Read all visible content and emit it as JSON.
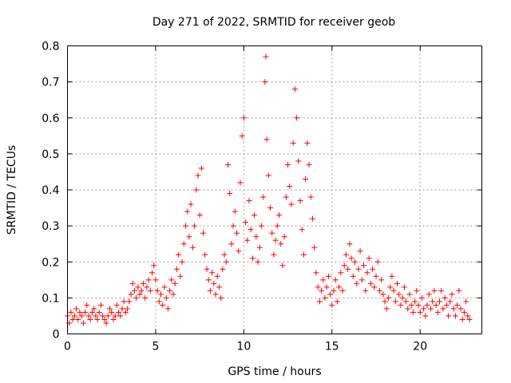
{
  "chart_data": {
    "type": "scatter",
    "title": "Day 271 of 2022, SRMTID for receiver geob",
    "xlabel": "GPS time / hours",
    "ylabel": "SRMTID / TECUs",
    "xlim": [
      0,
      23.5
    ],
    "ylim": [
      0,
      0.8
    ],
    "xticks": [
      0,
      5,
      10,
      15,
      20
    ],
    "yticks": [
      0,
      0.1,
      0.2,
      0.3,
      0.4,
      0.5,
      0.6,
      0.7,
      0.8
    ],
    "grid": true,
    "marker": "+",
    "series": [
      {
        "name": "SRMTID",
        "color": "#ff0000",
        "points": [
          [
            0.0,
            0.05
          ],
          [
            0.1,
            0.03
          ],
          [
            0.2,
            0.06
          ],
          [
            0.3,
            0.04
          ],
          [
            0.4,
            0.05
          ],
          [
            0.5,
            0.07
          ],
          [
            0.6,
            0.04
          ],
          [
            0.7,
            0.06
          ],
          [
            0.8,
            0.05
          ],
          [
            0.9,
            0.03
          ],
          [
            1.0,
            0.06
          ],
          [
            1.1,
            0.08
          ],
          [
            1.2,
            0.05
          ],
          [
            1.3,
            0.04
          ],
          [
            1.4,
            0.06
          ],
          [
            1.5,
            0.07
          ],
          [
            1.6,
            0.05
          ],
          [
            1.7,
            0.04
          ],
          [
            1.8,
            0.06
          ],
          [
            1.9,
            0.08
          ],
          [
            2.0,
            0.05
          ],
          [
            2.1,
            0.04
          ],
          [
            2.2,
            0.03
          ],
          [
            2.3,
            0.05
          ],
          [
            2.4,
            0.07
          ],
          [
            2.5,
            0.06
          ],
          [
            2.6,
            0.04
          ],
          [
            2.7,
            0.05
          ],
          [
            2.8,
            0.08
          ],
          [
            2.9,
            0.06
          ],
          [
            3.0,
            0.05
          ],
          [
            3.1,
            0.07
          ],
          [
            3.2,
            0.09
          ],
          [
            3.3,
            0.06
          ],
          [
            3.4,
            0.07
          ],
          [
            3.5,
            0.09
          ],
          [
            3.6,
            0.11
          ],
          [
            3.7,
            0.14
          ],
          [
            3.8,
            0.12
          ],
          [
            3.9,
            0.1
          ],
          [
            4.0,
            0.13
          ],
          [
            4.1,
            0.11
          ],
          [
            4.2,
            0.12
          ],
          [
            4.3,
            0.14
          ],
          [
            4.4,
            0.1
          ],
          [
            4.5,
            0.13
          ],
          [
            4.6,
            0.15
          ],
          [
            4.7,
            0.12
          ],
          [
            4.8,
            0.17
          ],
          [
            4.9,
            0.19
          ],
          [
            5.0,
            0.15
          ],
          [
            5.1,
            0.12
          ],
          [
            5.2,
            0.09
          ],
          [
            5.3,
            0.11
          ],
          [
            5.4,
            0.08
          ],
          [
            5.5,
            0.13
          ],
          [
            5.6,
            0.1
          ],
          [
            5.7,
            0.07
          ],
          [
            5.8,
            0.12
          ],
          [
            5.9,
            0.15
          ],
          [
            6.0,
            0.11
          ],
          [
            6.1,
            0.14
          ],
          [
            6.2,
            0.18
          ],
          [
            6.3,
            0.22
          ],
          [
            6.4,
            0.16
          ],
          [
            6.5,
            0.2
          ],
          [
            6.6,
            0.25
          ],
          [
            6.7,
            0.3
          ],
          [
            6.8,
            0.34
          ],
          [
            6.9,
            0.27
          ],
          [
            7.0,
            0.36
          ],
          [
            7.1,
            0.24
          ],
          [
            7.2,
            0.3
          ],
          [
            7.3,
            0.4
          ],
          [
            7.4,
            0.44
          ],
          [
            7.5,
            0.33
          ],
          [
            7.6,
            0.46
          ],
          [
            7.7,
            0.28
          ],
          [
            7.8,
            0.22
          ],
          [
            7.9,
            0.18
          ],
          [
            8.0,
            0.15
          ],
          [
            8.1,
            0.12
          ],
          [
            8.2,
            0.17
          ],
          [
            8.3,
            0.14
          ],
          [
            8.4,
            0.11
          ],
          [
            8.5,
            0.16
          ],
          [
            8.6,
            0.13
          ],
          [
            8.7,
            0.1
          ],
          [
            8.8,
            0.18
          ],
          [
            8.9,
            0.22
          ],
          [
            9.0,
            0.2
          ],
          [
            9.1,
            0.47
          ],
          [
            9.2,
            0.39
          ],
          [
            9.3,
            0.25
          ],
          [
            9.4,
            0.3
          ],
          [
            9.5,
            0.34
          ],
          [
            9.6,
            0.28
          ],
          [
            9.7,
            0.23
          ],
          [
            9.8,
            0.42
          ],
          [
            9.9,
            0.55
          ],
          [
            10.0,
            0.6
          ],
          [
            10.1,
            0.31
          ],
          [
            10.2,
            0.26
          ],
          [
            10.3,
            0.37
          ],
          [
            10.4,
            0.29
          ],
          [
            10.5,
            0.21
          ],
          [
            10.6,
            0.33
          ],
          [
            10.7,
            0.27
          ],
          [
            10.8,
            0.2
          ],
          [
            10.9,
            0.24
          ],
          [
            11.0,
            0.3
          ],
          [
            11.1,
            0.38
          ],
          [
            11.2,
            0.7
          ],
          [
            11.25,
            0.77
          ],
          [
            11.3,
            0.54
          ],
          [
            11.4,
            0.44
          ],
          [
            11.5,
            0.35
          ],
          [
            11.6,
            0.28
          ],
          [
            11.7,
            0.22
          ],
          [
            11.8,
            0.26
          ],
          [
            11.9,
            0.3
          ],
          [
            12.0,
            0.33
          ],
          [
            12.1,
            0.25
          ],
          [
            12.2,
            0.19
          ],
          [
            12.3,
            0.27
          ],
          [
            12.4,
            0.38
          ],
          [
            12.5,
            0.47
          ],
          [
            12.6,
            0.41
          ],
          [
            12.7,
            0.36
          ],
          [
            12.8,
            0.53
          ],
          [
            12.9,
            0.68
          ],
          [
            13.0,
            0.6
          ],
          [
            13.1,
            0.48
          ],
          [
            13.2,
            0.37
          ],
          [
            13.3,
            0.29
          ],
          [
            13.4,
            0.22
          ],
          [
            13.5,
            0.43
          ],
          [
            13.6,
            0.53
          ],
          [
            13.7,
            0.47
          ],
          [
            13.8,
            0.38
          ],
          [
            13.9,
            0.32
          ],
          [
            14.0,
            0.24
          ],
          [
            14.1,
            0.17
          ],
          [
            14.2,
            0.13
          ],
          [
            14.3,
            0.09
          ],
          [
            14.4,
            0.12
          ],
          [
            14.5,
            0.15
          ],
          [
            14.6,
            0.1
          ],
          [
            14.7,
            0.13
          ],
          [
            14.8,
            0.16
          ],
          [
            14.9,
            0.11
          ],
          [
            15.0,
            0.08
          ],
          [
            15.1,
            0.12
          ],
          [
            15.2,
            0.15
          ],
          [
            15.3,
            0.09
          ],
          [
            15.4,
            0.13
          ],
          [
            15.5,
            0.17
          ],
          [
            15.6,
            0.12
          ],
          [
            15.7,
            0.19
          ],
          [
            15.8,
            0.22
          ],
          [
            15.9,
            0.18
          ],
          [
            16.0,
            0.25
          ],
          [
            16.1,
            0.21
          ],
          [
            16.2,
            0.16
          ],
          [
            16.3,
            0.2
          ],
          [
            16.4,
            0.14
          ],
          [
            16.5,
            0.18
          ],
          [
            16.6,
            0.23
          ],
          [
            16.7,
            0.15
          ],
          [
            16.8,
            0.19
          ],
          [
            16.9,
            0.12
          ],
          [
            17.0,
            0.17
          ],
          [
            17.1,
            0.21
          ],
          [
            17.2,
            0.14
          ],
          [
            17.3,
            0.18
          ],
          [
            17.4,
            0.13
          ],
          [
            17.5,
            0.16
          ],
          [
            17.6,
            0.2
          ],
          [
            17.7,
            0.12
          ],
          [
            17.8,
            0.15
          ],
          [
            17.9,
            0.11
          ],
          [
            18.0,
            0.09
          ],
          [
            18.1,
            0.07
          ],
          [
            18.2,
            0.1
          ],
          [
            18.3,
            0.13
          ],
          [
            18.4,
            0.16
          ],
          [
            18.5,
            0.12
          ],
          [
            18.6,
            0.09
          ],
          [
            18.7,
            0.14
          ],
          [
            18.8,
            0.11
          ],
          [
            18.9,
            0.08
          ],
          [
            19.0,
            0.1
          ],
          [
            19.1,
            0.13
          ],
          [
            19.2,
            0.09
          ],
          [
            19.3,
            0.07
          ],
          [
            19.4,
            0.11
          ],
          [
            19.5,
            0.08
          ],
          [
            19.6,
            0.06
          ],
          [
            19.7,
            0.09
          ],
          [
            19.8,
            0.12
          ],
          [
            19.9,
            0.08
          ],
          [
            20.0,
            0.06
          ],
          [
            20.1,
            0.1
          ],
          [
            20.2,
            0.07
          ],
          [
            20.3,
            0.05
          ],
          [
            20.4,
            0.08
          ],
          [
            20.5,
            0.11
          ],
          [
            20.6,
            0.07
          ],
          [
            20.7,
            0.09
          ],
          [
            20.8,
            0.12
          ],
          [
            20.9,
            0.08
          ],
          [
            21.0,
            0.06
          ],
          [
            21.1,
            0.09
          ],
          [
            21.2,
            0.12
          ],
          [
            21.3,
            0.07
          ],
          [
            21.4,
            0.1
          ],
          [
            21.5,
            0.08
          ],
          [
            21.6,
            0.05
          ],
          [
            21.7,
            0.09
          ],
          [
            21.8,
            0.11
          ],
          [
            21.9,
            0.07
          ],
          [
            22.0,
            0.05
          ],
          [
            22.1,
            0.08
          ],
          [
            22.2,
            0.12
          ],
          [
            22.3,
            0.07
          ],
          [
            22.4,
            0.04
          ],
          [
            22.5,
            0.06
          ],
          [
            22.6,
            0.09
          ],
          [
            22.7,
            0.05
          ],
          [
            22.8,
            0.04
          ]
        ]
      }
    ]
  }
}
